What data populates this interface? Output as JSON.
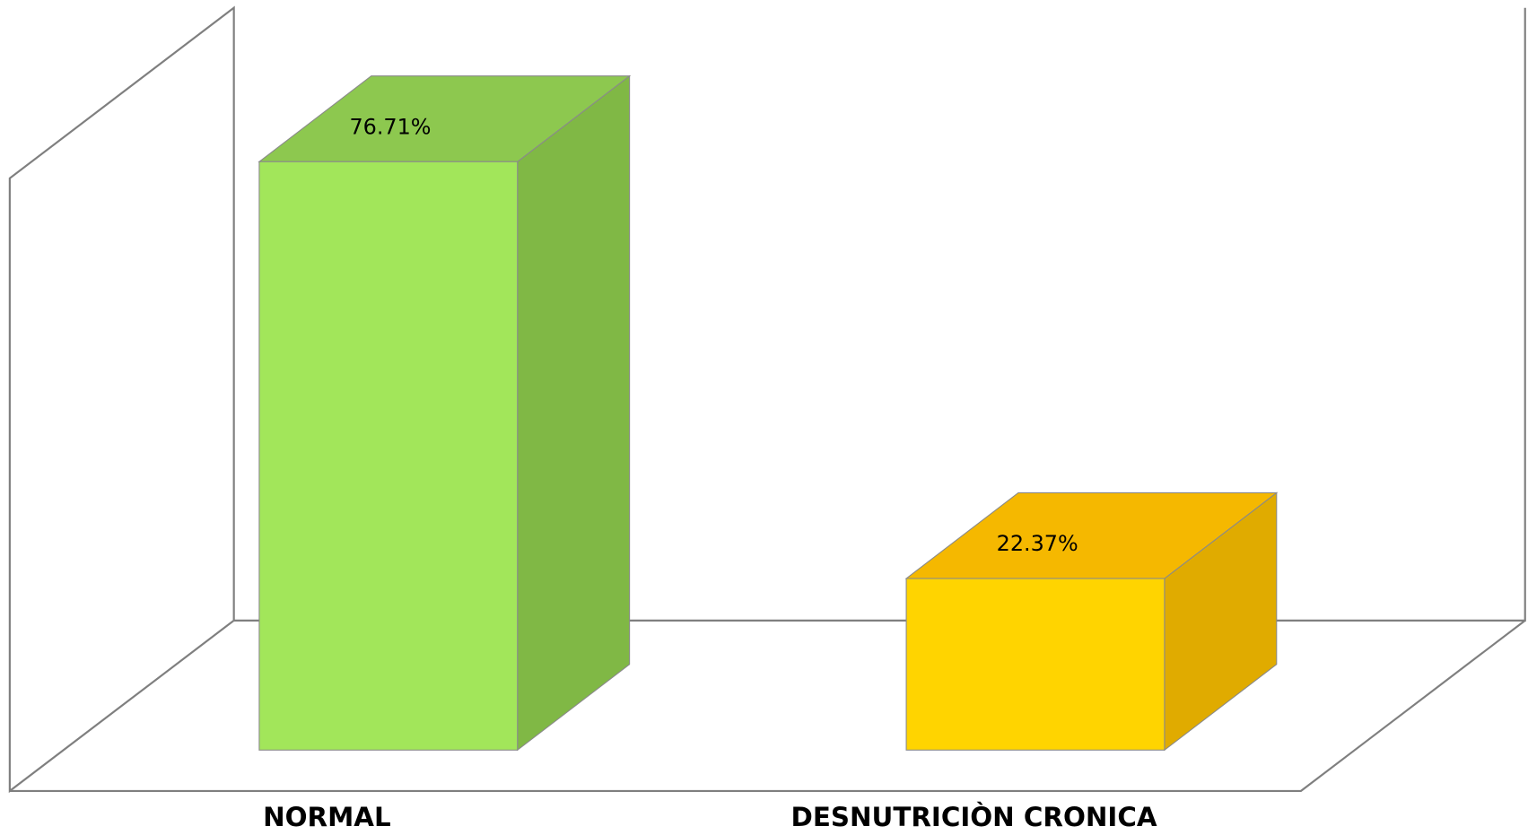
{
  "chart_data": {
    "type": "bar3d",
    "categories": [
      "NORMAL",
      "DESNUTRICIÒN CRONICA"
    ],
    "values": [
      76.71,
      22.37
    ],
    "value_labels": [
      "76.71%",
      "22.37%"
    ],
    "colors": [
      "#a2e65a",
      "#ffd400"
    ],
    "top_colors": [
      "#8dc84f",
      "#f5b800"
    ],
    "side_colors": [
      "#80b845",
      "#e0ab00"
    ]
  }
}
